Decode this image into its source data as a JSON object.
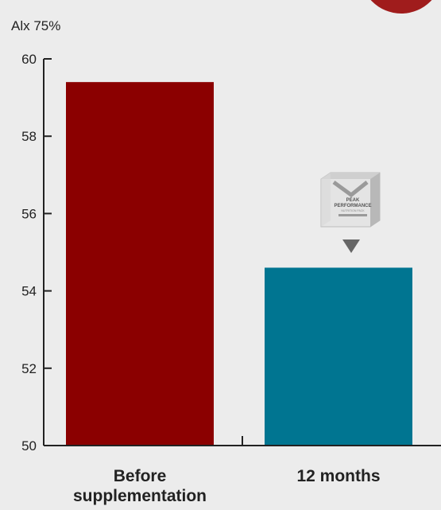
{
  "chart_data": {
    "type": "bar",
    "ylabel": "Alx 75%",
    "ylim": [
      50,
      60
    ],
    "yticks": [
      50,
      52,
      54,
      56,
      58,
      60
    ],
    "categories": [
      "Before supplementation",
      "12 months"
    ],
    "category_lines": [
      [
        "Before",
        "supplementation"
      ],
      [
        "12 months"
      ]
    ],
    "values": [
      59.4,
      54.6
    ],
    "colors": [
      "#8b0000",
      "#007591"
    ],
    "grid": false
  },
  "badge": {
    "line1": "PEAK",
    "line2": "PERFORMANCE",
    "line3": "NUTRITION PACK"
  },
  "decor_color": "#a01c1c"
}
